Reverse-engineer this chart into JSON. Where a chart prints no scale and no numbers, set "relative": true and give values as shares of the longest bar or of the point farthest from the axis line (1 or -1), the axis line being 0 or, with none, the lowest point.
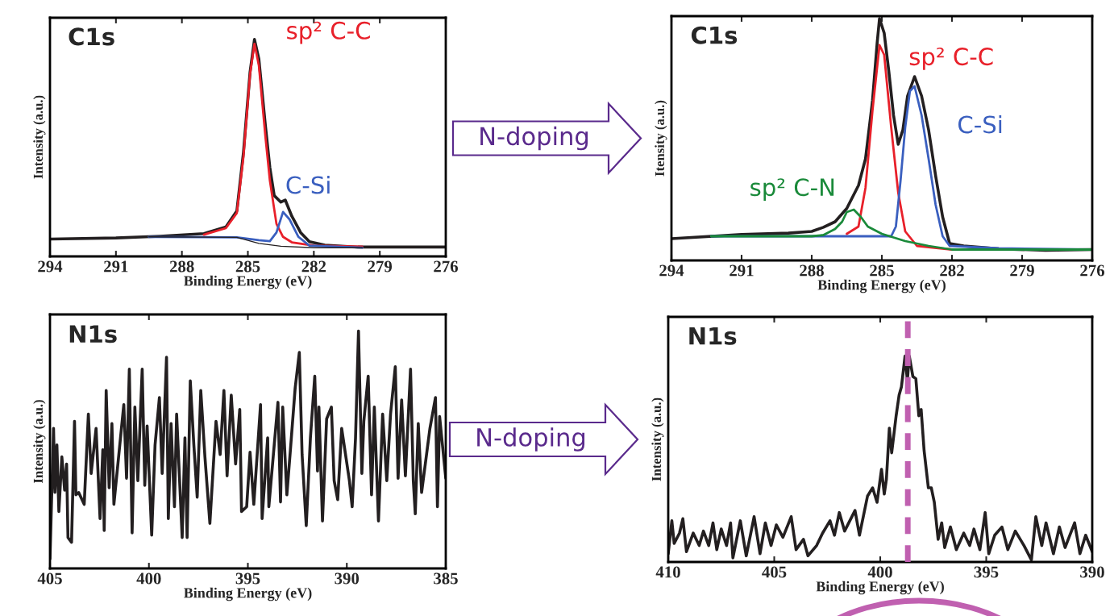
{
  "chart_data": [
    {
      "type": "line",
      "title": "C1s",
      "xlabel": "Binding Energy (eV)",
      "ylabel": "Intensity (a.u.)",
      "relative": true,
      "tick_labels": "x",
      "xlim": [
        294,
        276
      ],
      "xticks": [
        294,
        291,
        288,
        285,
        282,
        279,
        276
      ],
      "series": [
        {
          "color": "#231f20",
          "x": [
            294,
            291,
            289,
            287,
            286,
            285.5,
            285.2,
            284.9,
            284.7,
            284.5,
            284.2,
            284,
            283.8,
            283.5,
            283.3,
            283,
            282.6,
            282.2,
            281.5,
            280,
            278,
            276
          ],
          "values": [
            0.08,
            0.085,
            0.093,
            0.105,
            0.136,
            0.21,
            0.48,
            0.85,
            1.0,
            0.91,
            0.6,
            0.41,
            0.28,
            0.25,
            0.26,
            0.185,
            0.11,
            0.068,
            0.052,
            0.043,
            0.043,
            0.043
          ]
        },
        {
          "name": "sp² C-C",
          "color": "#e8202a",
          "x": [
            287,
            286,
            285.5,
            285.2,
            284.9,
            284.7,
            284.5,
            284.2,
            284,
            283.7,
            283.4,
            283,
            282,
            279.8
          ],
          "values": [
            0.1,
            0.13,
            0.2,
            0.46,
            0.84,
            0.98,
            0.88,
            0.55,
            0.35,
            0.15,
            0.09,
            0.065,
            0.05,
            0.045
          ]
        },
        {
          "name": "C-Si",
          "color": "#3a5fbf",
          "x": [
            289.5,
            285.5,
            284.5,
            284.0,
            283.7,
            283.4,
            283.1,
            282.7,
            282.2,
            279.8
          ],
          "values": [
            0.09,
            0.088,
            0.075,
            0.07,
            0.11,
            0.205,
            0.17,
            0.09,
            0.05,
            0.04
          ]
        },
        {
          "color": "#231f20",
          "x": [
            289.5,
            285.5,
            284.5,
            283.5,
            282,
            279.8
          ],
          "values": [
            0.09,
            0.088,
            0.06,
            0.047,
            0.04,
            0.04
          ]
        }
      ]
    },
    {
      "type": "line",
      "title": "C1s",
      "xlabel": "Binding Energy (eV)",
      "ylabel": "Itensity (a.u.)",
      "relative": true,
      "tick_labels": "x",
      "xlim": [
        294,
        276
      ],
      "xticks": [
        294,
        291,
        288,
        285,
        282,
        279,
        276
      ],
      "annotations": [
        "N-doping"
      ],
      "series": [
        {
          "color": "#231f20",
          "x": [
            294,
            291,
            289,
            288,
            287.5,
            287,
            286.5,
            286,
            285.7,
            285.4,
            285.2,
            285.1,
            284.9,
            284.7,
            284.5,
            284.3,
            284.1,
            283.9,
            283.6,
            283.3,
            283.0,
            282.7,
            282.4,
            282.1,
            281.5,
            280,
            278,
            276
          ],
          "values": [
            0.09,
            0.107,
            0.113,
            0.12,
            0.137,
            0.16,
            0.215,
            0.31,
            0.42,
            0.66,
            0.9,
            1.0,
            0.94,
            0.78,
            0.6,
            0.48,
            0.54,
            0.68,
            0.76,
            0.68,
            0.54,
            0.35,
            0.18,
            0.07,
            0.06,
            0.048,
            0.042,
            0.045
          ]
        },
        {
          "name": "sp² C-C",
          "color": "#e8202a",
          "x": [
            286.5,
            286,
            285.7,
            285.4,
            285.1,
            284.9,
            284.6,
            284.3,
            284,
            283.5,
            282.5,
            282
          ],
          "values": [
            0.11,
            0.14,
            0.3,
            0.62,
            0.89,
            0.85,
            0.55,
            0.28,
            0.12,
            0.06,
            0.05,
            0.045
          ]
        },
        {
          "name": "C-Si",
          "color": "#3a5fbf",
          "x": [
            292.3,
            285,
            284.6,
            284.4,
            284.2,
            284,
            283.8,
            283.6,
            283.3,
            283,
            282.7,
            282.4,
            282.1,
            280,
            276
          ],
          "values": [
            0.1,
            0.1,
            0.1,
            0.14,
            0.33,
            0.55,
            0.7,
            0.72,
            0.6,
            0.42,
            0.23,
            0.1,
            0.06,
            0.05,
            0.045
          ]
        },
        {
          "name": "sp² C-N",
          "color": "#1a8a3a",
          "x": [
            292.3,
            288,
            287.5,
            287,
            286.7,
            286.5,
            286.2,
            285.9,
            285.6,
            285,
            284,
            283,
            282,
            276
          ],
          "values": [
            0.1,
            0.1,
            0.105,
            0.13,
            0.16,
            0.2,
            0.21,
            0.18,
            0.14,
            0.11,
            0.08,
            0.06,
            0.045,
            0.045
          ]
        }
      ]
    },
    {
      "type": "line",
      "title": "N1s",
      "xlabel": "Binding Energy (eV)",
      "ylabel": "Intensity (a.u.)",
      "relative": true,
      "tick_labels": "x",
      "xlim": [
        405,
        385
      ],
      "xticks": [
        405,
        400,
        395,
        390,
        385
      ],
      "series": [
        {
          "color": "#231f20",
          "x": [
            405.0,
            404.82,
            404.75,
            404.65,
            404.55,
            404.4,
            404.26,
            404.16,
            404.09,
            403.91,
            403.76,
            403.69,
            403.55,
            403.27,
            403.06,
            402.92,
            402.67,
            402.47,
            402.33,
            402.26,
            402.16,
            402.01,
            401.87,
            401.77,
            401.27,
            401.13,
            400.99,
            400.85,
            400.71,
            400.56,
            400.34,
            400.21,
            400.09,
            399.86,
            399.69,
            399.47,
            399.33,
            399.11,
            399.02,
            398.88,
            398.71,
            398.6,
            398.32,
            398.18,
            398.07,
            397.91,
            397.73,
            397.56,
            397.38,
            397.17,
            396.92,
            396.61,
            396.4,
            396.21,
            396.05,
            395.84,
            395.62,
            395.41,
            395.32,
            395.06,
            394.89,
            394.7,
            394.36,
            394.28,
            394.0,
            393.94,
            393.48,
            393.35,
            393.24,
            393.03,
            392.85,
            392.61,
            392.4,
            392.26,
            392.05,
            391.84,
            391.62,
            391.48,
            391.41,
            391.23,
            391.02,
            390.78,
            390.64,
            390.46,
            390.26,
            389.87,
            389.73,
            389.56,
            389.41,
            389.24,
            389.14,
            388.92,
            388.75,
            388.61,
            388.4,
            388.19,
            387.98,
            387.79,
            387.55,
            387.41,
            387.23,
            387.04,
            386.78,
            386.64,
            386.54,
            386.39,
            386.22,
            385.8,
            385.52,
            385.42,
            385.31,
            385.0
          ],
          "values": [
            0.04,
            0.59,
            0.32,
            0.52,
            0.24,
            0.47,
            0.33,
            0.44,
            0.13,
            0.11,
            0.62,
            0.31,
            0.32,
            0.27,
            0.65,
            0.4,
            0.59,
            0.21,
            0.5,
            0.16,
            0.75,
            0.34,
            0.61,
            0.27,
            0.69,
            0.38,
            0.84,
            0.15,
            0.68,
            0.37,
            0.84,
            0.35,
            0.6,
            0.14,
            0.52,
            0.72,
            0.4,
            0.89,
            0.21,
            0.61,
            0.26,
            0.65,
            0.13,
            0.55,
            0.13,
            0.79,
            0.52,
            0.3,
            0.75,
            0.47,
            0.19,
            0.62,
            0.48,
            0.75,
            0.39,
            0.73,
            0.44,
            0.67,
            0.24,
            0.26,
            0.49,
            0.27,
            0.69,
            0.21,
            0.55,
            0.26,
            0.7,
            0.28,
            0.68,
            0.31,
            0.5,
            0.76,
            0.91,
            0.48,
            0.18,
            0.55,
            0.81,
            0.41,
            0.68,
            0.2,
            0.63,
            0.68,
            0.37,
            0.29,
            0.59,
            0.37,
            0.26,
            0.55,
            1.0,
            0.4,
            0.62,
            0.81,
            0.31,
            0.68,
            0.2,
            0.65,
            0.37,
            0.65,
            0.85,
            0.38,
            0.71,
            0.39,
            0.84,
            0.37,
            0.23,
            0.61,
            0.32,
            0.59,
            0.72,
            0.26,
            0.64,
            0.38
          ]
        }
      ]
    },
    {
      "type": "line",
      "title": "N1s",
      "xlabel": "Binding Energy (eV)",
      "ylabel": "Intensity (a.u.)",
      "relative": true,
      "tick_labels": "x",
      "xlim": [
        410,
        390
      ],
      "xticks": [
        410,
        405,
        400,
        395,
        390
      ],
      "annotations": [
        "N-doping"
      ],
      "ref_lines": [
        {
          "axis": "x",
          "value": 398.7,
          "color": "#c060b0",
          "line_style": "dashed"
        }
      ],
      "series": [
        {
          "color": "#231f20",
          "x": [
            410.0,
            409.83,
            409.72,
            409.47,
            409.31,
            409.14,
            408.82,
            408.54,
            408.34,
            408.09,
            407.89,
            407.71,
            407.5,
            407.25,
            407.06,
            406.95,
            406.6,
            406.32,
            405.95,
            405.67,
            405.42,
            405.15,
            404.9,
            404.59,
            404.2,
            403.97,
            403.62,
            403.41,
            403.0,
            402.72,
            402.37,
            402.16,
            401.93,
            401.68,
            401.19,
            400.98,
            400.6,
            400.36,
            400.15,
            399.94,
            399.81,
            399.71,
            399.57,
            399.46,
            399.25,
            399.11,
            399.0,
            398.83,
            398.72,
            398.63,
            398.46,
            398.32,
            398.18,
            398.07,
            397.93,
            397.73,
            397.59,
            397.45,
            397.27,
            397.1,
            396.96,
            396.69,
            396.41,
            396.06,
            395.78,
            395.58,
            395.3,
            395.05,
            394.88,
            394.6,
            394.26,
            393.98,
            393.63,
            393.22,
            392.87,
            392.66,
            392.38,
            392.18,
            391.83,
            391.55,
            391.28,
            390.83,
            390.58,
            390.31,
            390.0
          ],
          "values": [
            0.04,
            0.2,
            0.09,
            0.14,
            0.21,
            0.05,
            0.14,
            0.08,
            0.15,
            0.08,
            0.19,
            0.06,
            0.16,
            0.08,
            0.19,
            0.02,
            0.2,
            0.03,
            0.22,
            0.04,
            0.19,
            0.08,
            0.18,
            0.12,
            0.22,
            0.06,
            0.11,
            0.03,
            0.08,
            0.14,
            0.2,
            0.13,
            0.24,
            0.15,
            0.25,
            0.13,
            0.32,
            0.36,
            0.29,
            0.45,
            0.33,
            0.4,
            0.65,
            0.53,
            0.71,
            0.81,
            0.85,
            1.0,
            0.88,
            1.0,
            0.9,
            0.89,
            0.71,
            0.74,
            0.54,
            0.36,
            0.36,
            0.29,
            0.11,
            0.19,
            0.07,
            0.17,
            0.06,
            0.14,
            0.08,
            0.16,
            0.06,
            0.24,
            0.04,
            0.13,
            0.17,
            0.06,
            0.15,
            0.08,
            0.01,
            0.22,
            0.08,
            0.19,
            0.04,
            0.17,
            0.07,
            0.19,
            0.04,
            0.13,
            0.05
          ]
        }
      ]
    }
  ]
}
